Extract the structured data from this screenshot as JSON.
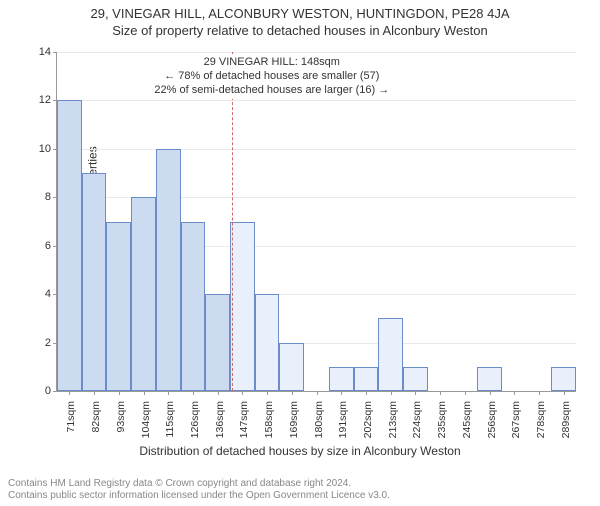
{
  "title": "29, VINEGAR HILL, ALCONBURY WESTON, HUNTINGDON, PE28 4JA",
  "subtitle": "Size of property relative to detached houses in Alconbury Weston",
  "ylabel": "Number of detached properties",
  "xlabel": "Distribution of detached houses by size in Alconbury Weston",
  "chart": {
    "type": "histogram",
    "ylim": [
      0,
      14
    ],
    "ytick_step": 2,
    "xcategories": [
      "71sqm",
      "82sqm",
      "93sqm",
      "104sqm",
      "115sqm",
      "126sqm",
      "136sqm",
      "147sqm",
      "158sqm",
      "169sqm",
      "180sqm",
      "191sqm",
      "202sqm",
      "213sqm",
      "224sqm",
      "235sqm",
      "245sqm",
      "256sqm",
      "267sqm",
      "278sqm",
      "289sqm"
    ],
    "values": [
      12,
      9,
      7,
      8,
      10,
      7,
      4,
      7,
      4,
      2,
      0,
      1,
      1,
      3,
      1,
      0,
      0,
      1,
      0,
      0,
      1
    ],
    "bar_border_color": "#6a8dca",
    "bar_fill_color": "#cddbf0",
    "bar_fill_color_light": "#eaf0fb",
    "grid_color": "#e9e9e9",
    "axis_color": "#999999",
    "reference_x_index": 7.1,
    "reference_color": "#c96b6b"
  },
  "annotation": {
    "line1": "29 VINEGAR HILL: 148sqm",
    "line2": "← 78% of detached houses are smaller (57)",
    "line3": "22% of semi-detached houses are larger (16) →"
  },
  "footer": {
    "line1": "Contains HM Land Registry data © Crown copyright and database right 2024.",
    "line2": "Contains public sector information licensed under the Open Government Licence v3.0."
  },
  "fontsize": {
    "title": 13,
    "axis_label": 12,
    "tick": 11,
    "anno": 11,
    "footer": 10
  }
}
